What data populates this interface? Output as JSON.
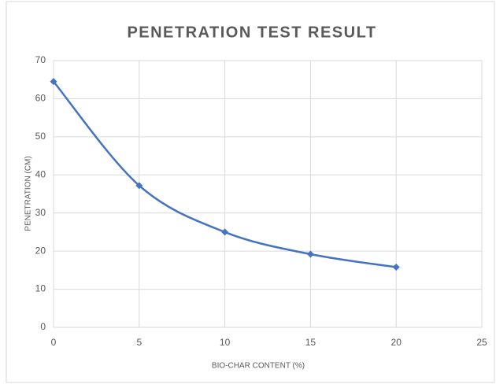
{
  "chart_data": {
    "type": "line",
    "title": "PENETRATION TEST RESULT",
    "x_label": "BIO-CHAR CONTENT (%)",
    "y_label": "PENETRATION (CM)",
    "x": [
      0,
      5,
      10,
      15,
      20
    ],
    "series": [
      {
        "name": "Penetration",
        "color": "#4472c4",
        "values": [
          64.5,
          37.2,
          25,
          19.2,
          15.8
        ]
      }
    ],
    "xlim": [
      0,
      25
    ],
    "xticks": [
      0,
      5,
      10,
      15,
      20,
      25
    ],
    "ylim": [
      0,
      70
    ],
    "yticks": [
      0,
      10,
      20,
      30,
      40,
      50,
      60,
      70
    ],
    "grid": true,
    "smooth": true,
    "marker": "diamond"
  }
}
